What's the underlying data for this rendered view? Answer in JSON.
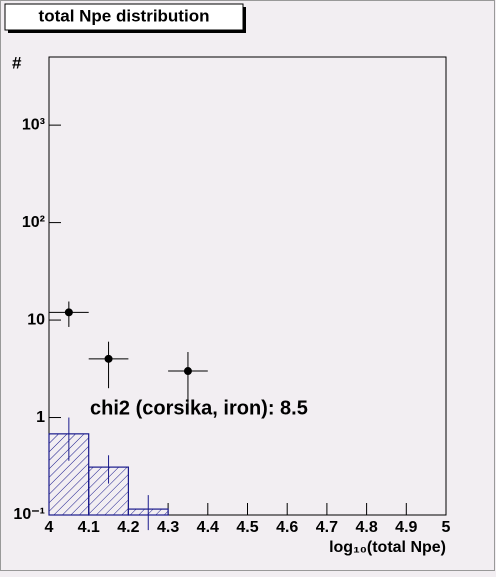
{
  "chart_data": {
    "type": "histogram",
    "title": "total Npe distribution",
    "x_label": "log₁₀(total Npe)",
    "y_label": "#",
    "annotation": "chi2 (corsika, iron): 8.5",
    "xlim": [
      4,
      5
    ],
    "xticks": [
      4,
      4.1,
      4.2,
      4.3,
      4.4,
      4.5,
      4.6,
      4.7,
      4.8,
      4.9,
      5
    ],
    "ylim": [
      0.1,
      5000
    ],
    "log_y": true,
    "yticks": [
      {
        "value": 0.1,
        "label": "10⁻¹"
      },
      1,
      10,
      {
        "value": 100,
        "label": "10²"
      },
      {
        "value": 1000,
        "label": "10³"
      }
    ],
    "bins": [
      4,
      4.1,
      4.2,
      4.3
    ],
    "values": [
      0.68,
      0.31,
      0.115
    ],
    "errors": [
      0.32,
      0.1,
      0.045
    ],
    "color": "#1a1a8c",
    "points": {
      "x": [
        4.05,
        4.15,
        4.35
      ],
      "x_errors": [
        0.05,
        0.05,
        0.05
      ],
      "values": [
        12,
        4,
        3
      ],
      "errors": [
        3.5,
        2,
        1.7
      ],
      "color": "#000000"
    }
  }
}
